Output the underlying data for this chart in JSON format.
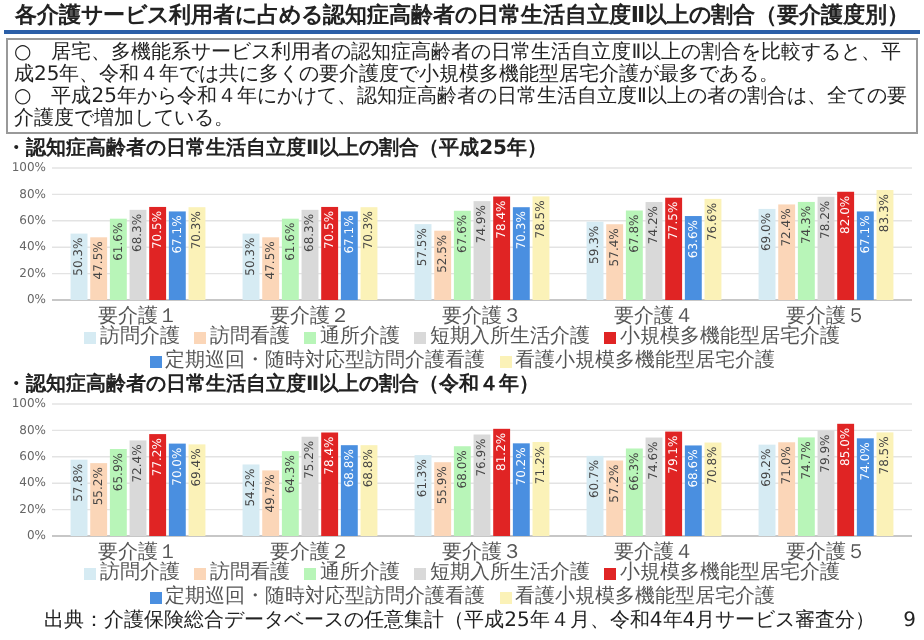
{
  "chart_data": [
    {
      "type": "bar",
      "title": "各介護サービス利用者に占める認知症高齢者の日常生活自立度Ⅱ以上の割合（要介護度別）",
      "subtitle": "・認知症高齢者の日常生活自立度Ⅱ以上の割合（平成25年）",
      "annotations": [
        "○　居宅、多機能系サービス利用者の認知症高齢者の日常生活自立度Ⅱ以上の割合を比較すると、平成25年、令和４年では共に多くの要介護度で小規模多機能型居宅介護が最多である。",
        "○　平成25年から令和４年にかけて、認知症高齢者の日常生活自立度Ⅱ以上の者の割合は、全ての要介護度で増加している。"
      ],
      "categories": [
        "要介護１",
        "要介護２",
        "要介護３",
        "要介護４",
        "要介護５"
      ],
      "series": [
        {
          "name": "訪問介護",
          "color": "#d6ebf3",
          "values": [
            50.3,
            50.3,
            57.5,
            59.3,
            69.0
          ],
          "value_labels": [
            "50.3%",
            "50.3%",
            "57.5%",
            "59.3%",
            "69.0%"
          ]
        },
        {
          "name": "訪問看護",
          "color": "#fbd6b8",
          "values": [
            47.5,
            47.5,
            52.5,
            57.4,
            72.4
          ],
          "value_labels": [
            "47.5%",
            "47.5%",
            "52.5%",
            "57.4%",
            "72.4%"
          ]
        },
        {
          "name": "通所介護",
          "color": "#b8f5b8",
          "values": [
            61.6,
            61.6,
            67.6,
            67.8,
            74.3
          ],
          "value_labels": [
            "61.6%",
            "61.6%",
            "67.6%",
            "67.8%",
            "74.3%"
          ]
        },
        {
          "name": "短期入所生活介護",
          "color": "#d9d9d9",
          "values": [
            68.3,
            68.3,
            74.9,
            74.2,
            78.2
          ],
          "value_labels": [
            "68.3%",
            "68.3%",
            "74.9%",
            "74.2%",
            "78.2%"
          ]
        },
        {
          "name": "小規模多機能型居宅介護",
          "color": "#e02424",
          "values": [
            70.5,
            70.5,
            78.4,
            77.5,
            82.0
          ],
          "value_labels": [
            "70.5%",
            "70.5%",
            "78.4%",
            "77.5%",
            "82.0%"
          ]
        },
        {
          "name": "定期巡回・随時対応型訪問介護看護",
          "color": "#4a8fe0",
          "values": [
            67.1,
            67.1,
            70.3,
            63.6,
            67.1
          ],
          "value_labels": [
            "67.1%",
            "67.1%",
            "70.3%",
            "63.6%",
            "67.1%"
          ]
        },
        {
          "name": "看護小規模多機能型居宅介護",
          "color": "#fbf2b8",
          "values": [
            70.3,
            70.3,
            78.5,
            76.6,
            83.3
          ],
          "value_labels": [
            "70.3%",
            "70.3%",
            "78.5%",
            "76.6%",
            "83.3%"
          ]
        }
      ],
      "ylim": [
        0,
        100
      ],
      "yticks": [
        {
          "value": 0,
          "label": "0%"
        },
        {
          "value": 20,
          "label": "20%"
        },
        {
          "value": 40,
          "label": "40%"
        },
        {
          "value": 60,
          "label": "60%"
        },
        {
          "value": 80,
          "label": "80%"
        },
        {
          "value": 100,
          "label": "100%"
        }
      ],
      "grid": "y",
      "legend": "bottom"
    },
    {
      "type": "bar",
      "title": "・認知症高齢者の日常生活自立度Ⅱ以上の割合（令和４年）",
      "annotations": [
        "出典：介護保険総合データベースの任意集計（平成25年４月、令和4年4月サービス審査分）",
        "9"
      ],
      "categories": [
        "要介護１",
        "要介護２",
        "要介護３",
        "要介護４",
        "要介護５"
      ],
      "series": [
        {
          "name": "訪問介護",
          "color": "#d6ebf3",
          "values": [
            57.8,
            54.2,
            61.3,
            60.7,
            69.2
          ],
          "value_labels": [
            "57.8%",
            "54.2%",
            "61.3%",
            "60.7%",
            "69.2%"
          ]
        },
        {
          "name": "訪問看護",
          "color": "#fbd6b8",
          "values": [
            55.2,
            49.7,
            55.9,
            57.2,
            71.0
          ],
          "value_labels": [
            "55.2%",
            "49.7%",
            "55.9%",
            "57.2%",
            "71.0%"
          ]
        },
        {
          "name": "通所介護",
          "color": "#b8f5b8",
          "values": [
            65.9,
            64.3,
            68.0,
            66.3,
            74.7
          ],
          "value_labels": [
            "65.9%",
            "64.3%",
            "68.0%",
            "66.3%",
            "74.7%"
          ]
        },
        {
          "name": "短期入所生活介護",
          "color": "#d9d9d9",
          "values": [
            72.4,
            75.2,
            76.9,
            74.6,
            79.9
          ],
          "value_labels": [
            "72.4%",
            "75.2%",
            "76.9%",
            "74.6%",
            "79.9%"
          ]
        },
        {
          "name": "小規模多機能型居宅介護",
          "color": "#e02424",
          "values": [
            77.2,
            78.4,
            81.2,
            79.1,
            85.0
          ],
          "value_labels": [
            "77.2%",
            "78.4%",
            "81.2%",
            "79.1%",
            "85.0%"
          ]
        },
        {
          "name": "定期巡回・随時対応型訪問介護看護",
          "color": "#4a8fe0",
          "values": [
            70.0,
            68.8,
            70.2,
            68.6,
            74.0
          ],
          "value_labels": [
            "70.0%",
            "68.8%",
            "70.2%",
            "68.6%",
            "74.0%"
          ]
        },
        {
          "name": "看護小規模多機能型居宅介護",
          "color": "#fbf2b8",
          "values": [
            69.4,
            68.8,
            71.2,
            70.8,
            78.5
          ],
          "value_labels": [
            "69.4%",
            "68.8%",
            "71.2%",
            "70.8%",
            "78.5%"
          ]
        }
      ],
      "ylim": [
        0,
        100
      ],
      "yticks": [
        {
          "value": 0,
          "label": "0%"
        },
        {
          "value": 20,
          "label": "20%"
        },
        {
          "value": 40,
          "label": "40%"
        },
        {
          "value": 60,
          "label": "60%"
        },
        {
          "value": 80,
          "label": "80%"
        },
        {
          "value": 100,
          "label": "100%"
        }
      ],
      "grid": "y",
      "legend": "bottom"
    }
  ]
}
